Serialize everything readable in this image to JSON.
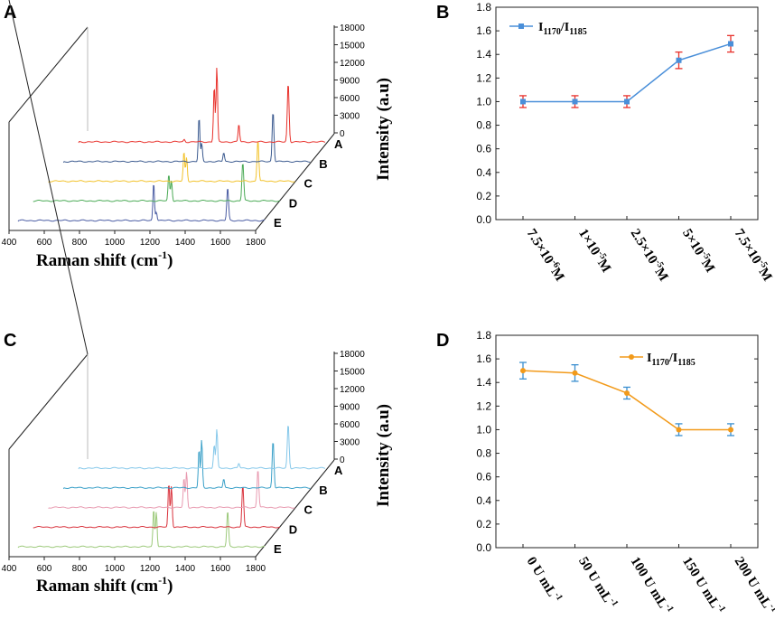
{
  "colors": {
    "trace_top": [
      "#e8312b",
      "#3b5a8f",
      "#f2c22b",
      "#4aaa55",
      "#4a5ca3"
    ],
    "trace_bottom": [
      "#86c8ea",
      "#3aa0c8",
      "#e89ab0",
      "#d9323c",
      "#9cc97a"
    ],
    "line_B": "#4a8fd9",
    "line_D": "#f29a1a",
    "error": "#e8312b",
    "error_D": "#3a8fd0"
  },
  "chart_data": [
    {
      "id": "A",
      "type": "line",
      "panel_label": "A",
      "title": "",
      "xlabel": "Raman shift (cm",
      "xlabel_sup": "-1",
      "xlabel_close": ")",
      "ylabel": "Intensity (a.u)",
      "x_ticks": [
        "400",
        "600",
        "800",
        "1000",
        "1200",
        "1400",
        "1600",
        "1800"
      ],
      "z_ticks": [
        "0",
        "3000",
        "6000",
        "9000",
        "12000",
        "15000",
        "18000"
      ],
      "series_labels": [
        "A",
        "B",
        "C",
        "D",
        "E"
      ],
      "peaks": [
        {
          "shift": 1170,
          "intensity": [
            7000,
            5200,
            4500,
            4200,
            5200
          ]
        },
        {
          "shift": 1185,
          "intensity": [
            11000,
            5000,
            4300,
            4000,
            5000
          ]
        },
        {
          "shift": 1590,
          "intensity": [
            9500,
            7800,
            6800,
            6500,
            5000
          ]
        }
      ]
    },
    {
      "id": "B",
      "type": "line",
      "panel_label": "B",
      "title": "",
      "xlabel": "",
      "ylabel": "",
      "ylim": [
        0,
        1.8
      ],
      "y_ticks": [
        "0.0",
        "0.2",
        "0.4",
        "0.6",
        "0.8",
        "1.0",
        "1.2",
        "1.4",
        "1.6",
        "1.8"
      ],
      "categories": [
        "7.5×10",
        "1×10",
        "2.5×10",
        "5×10",
        "7.5×10"
      ],
      "category_exp": [
        "-6",
        "-5",
        "-5",
        "-5",
        "-5"
      ],
      "category_unit": "M",
      "values": [
        1.0,
        1.0,
        1.0,
        1.35,
        1.49
      ],
      "errors": [
        0.05,
        0.05,
        0.05,
        0.07,
        0.07
      ],
      "legend": {
        "base": "I",
        "sub1": "1170",
        "slash": "/I",
        "sub2": "1185",
        "position": "top-left"
      }
    },
    {
      "id": "C",
      "type": "line",
      "panel_label": "C",
      "title": "",
      "xlabel": "Raman shift (cm",
      "xlabel_sup": "-1",
      "xlabel_close": ")",
      "ylabel": "Intensity (a.u)",
      "x_ticks": [
        "400",
        "600",
        "800",
        "1000",
        "1200",
        "1400",
        "1600",
        "1800"
      ],
      "z_ticks": [
        "0",
        "3000",
        "6000",
        "9000",
        "12000",
        "15000",
        "18000"
      ],
      "series_labels": [
        "A",
        "B",
        "C",
        "D",
        "E"
      ]
    },
    {
      "id": "D",
      "type": "line",
      "panel_label": "D",
      "title": "",
      "xlabel": "",
      "ylabel": "",
      "ylim": [
        0,
        1.8
      ],
      "y_ticks": [
        "0.0",
        "0.2",
        "0.4",
        "0.6",
        "0.8",
        "1.0",
        "1.2",
        "1.4",
        "1.6",
        "1.8"
      ],
      "categories": [
        "0 U mL",
        "50 U mL",
        "100 U mL",
        "150 U mL",
        "200 U mL"
      ],
      "category_exp": [
        "-1",
        "-1",
        "-1",
        "-1",
        "-1"
      ],
      "category_unit": "",
      "values": [
        1.5,
        1.48,
        1.31,
        1.0,
        1.0
      ],
      "errors": [
        0.07,
        0.07,
        0.05,
        0.05,
        0.05
      ],
      "legend": {
        "base": "I",
        "sub1": "1170",
        "slash": "/I",
        "sub2": "1185",
        "position": "top-right"
      }
    }
  ]
}
